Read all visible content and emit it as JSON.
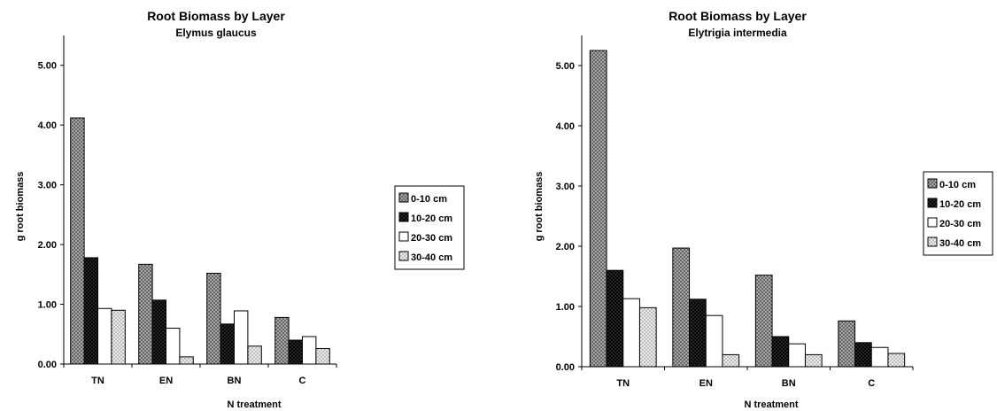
{
  "chart_data": [
    {
      "type": "bar",
      "title": "Root Biomass by Layer",
      "subtitle": "Elymus glaucus",
      "xlabel": "N treatment",
      "ylabel": "g root biomass",
      "categories": [
        "TN",
        "EN",
        "BN",
        "C"
      ],
      "ylim": [
        0,
        5.5
      ],
      "yticks": [
        "0.00",
        "1.00",
        "2.00",
        "3.00",
        "4.00",
        "5.00"
      ],
      "legend_position": "right",
      "grid": false,
      "series": [
        {
          "name": "0-10 cm",
          "values": [
            4.12,
            1.67,
            1.52,
            0.78
          ],
          "pattern": "crosshatch-light"
        },
        {
          "name": "10-20 cm",
          "values": [
            1.78,
            1.07,
            0.67,
            0.4
          ],
          "pattern": "crosshatch-dark"
        },
        {
          "name": "20-30 cm",
          "values": [
            0.93,
            0.6,
            0.89,
            0.46
          ],
          "pattern": "white"
        },
        {
          "name": "30-40 cm",
          "values": [
            0.9,
            0.12,
            0.3,
            0.26
          ],
          "pattern": "dotted"
        }
      ]
    },
    {
      "type": "bar",
      "title": "Root Biomass by Layer",
      "subtitle": "Elytrigia intermedia",
      "xlabel": "N treatment",
      "ylabel": "g root biomass",
      "categories": [
        "TN",
        "EN",
        "BN",
        "C"
      ],
      "ylim": [
        0,
        5.5
      ],
      "yticks": [
        "0.00",
        "1.00",
        "2.00",
        "3.00",
        "4.00",
        "5.00"
      ],
      "legend_position": "right",
      "grid": false,
      "series": [
        {
          "name": "0-10 cm",
          "values": [
            5.25,
            1.97,
            1.52,
            0.76
          ],
          "pattern": "crosshatch-light"
        },
        {
          "name": "10-20 cm",
          "values": [
            1.6,
            1.12,
            0.5,
            0.4
          ],
          "pattern": "crosshatch-dark"
        },
        {
          "name": "20-30 cm",
          "values": [
            1.13,
            0.85,
            0.38,
            0.32
          ],
          "pattern": "white"
        },
        {
          "name": "30-40 cm",
          "values": [
            0.98,
            0.2,
            0.2,
            0.22
          ],
          "pattern": "dotted"
        }
      ]
    }
  ]
}
